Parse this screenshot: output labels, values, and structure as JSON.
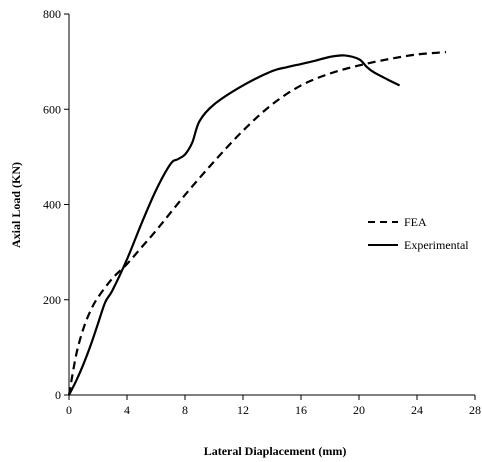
{
  "chart_data": {
    "type": "line",
    "xlabel": "Lateral Diaplacement (mm)",
    "ylabel": "Axial Load (KN)",
    "xlim": [
      0,
      28
    ],
    "ylim": [
      0,
      800
    ],
    "xticks": [
      "0",
      "4",
      "8",
      "12",
      "16",
      "20",
      "24",
      "28"
    ],
    "yticks": [
      "0",
      "200",
      "400",
      "600",
      "800"
    ],
    "grid": false,
    "legend": "right",
    "series": [
      {
        "name": "FEA",
        "style": "dashed",
        "color": "#000000",
        "x": [
          0,
          0.5,
          1,
          1.5,
          2,
          3,
          4,
          5,
          6,
          8,
          10,
          12,
          14,
          16,
          18,
          20,
          22,
          24,
          26
        ],
        "y": [
          0,
          85,
          140,
          178,
          205,
          245,
          275,
          310,
          345,
          420,
          490,
          555,
          610,
          650,
          675,
          692,
          705,
          715,
          720
        ]
      },
      {
        "name": "Experimental",
        "style": "solid",
        "color": "#000000",
        "x": [
          0,
          0.5,
          1,
          1.5,
          2,
          2.5,
          3,
          4,
          5,
          6,
          7,
          7.5,
          8,
          8.5,
          9,
          10,
          12,
          14,
          15,
          16,
          17,
          18,
          19,
          20,
          20.5,
          21,
          22,
          22.8
        ],
        "y": [
          0,
          30,
          65,
          105,
          150,
          195,
          220,
          285,
          360,
          430,
          485,
          495,
          505,
          530,
          575,
          610,
          650,
          680,
          688,
          695,
          702,
          710,
          713,
          705,
          690,
          678,
          662,
          650
        ]
      }
    ]
  }
}
